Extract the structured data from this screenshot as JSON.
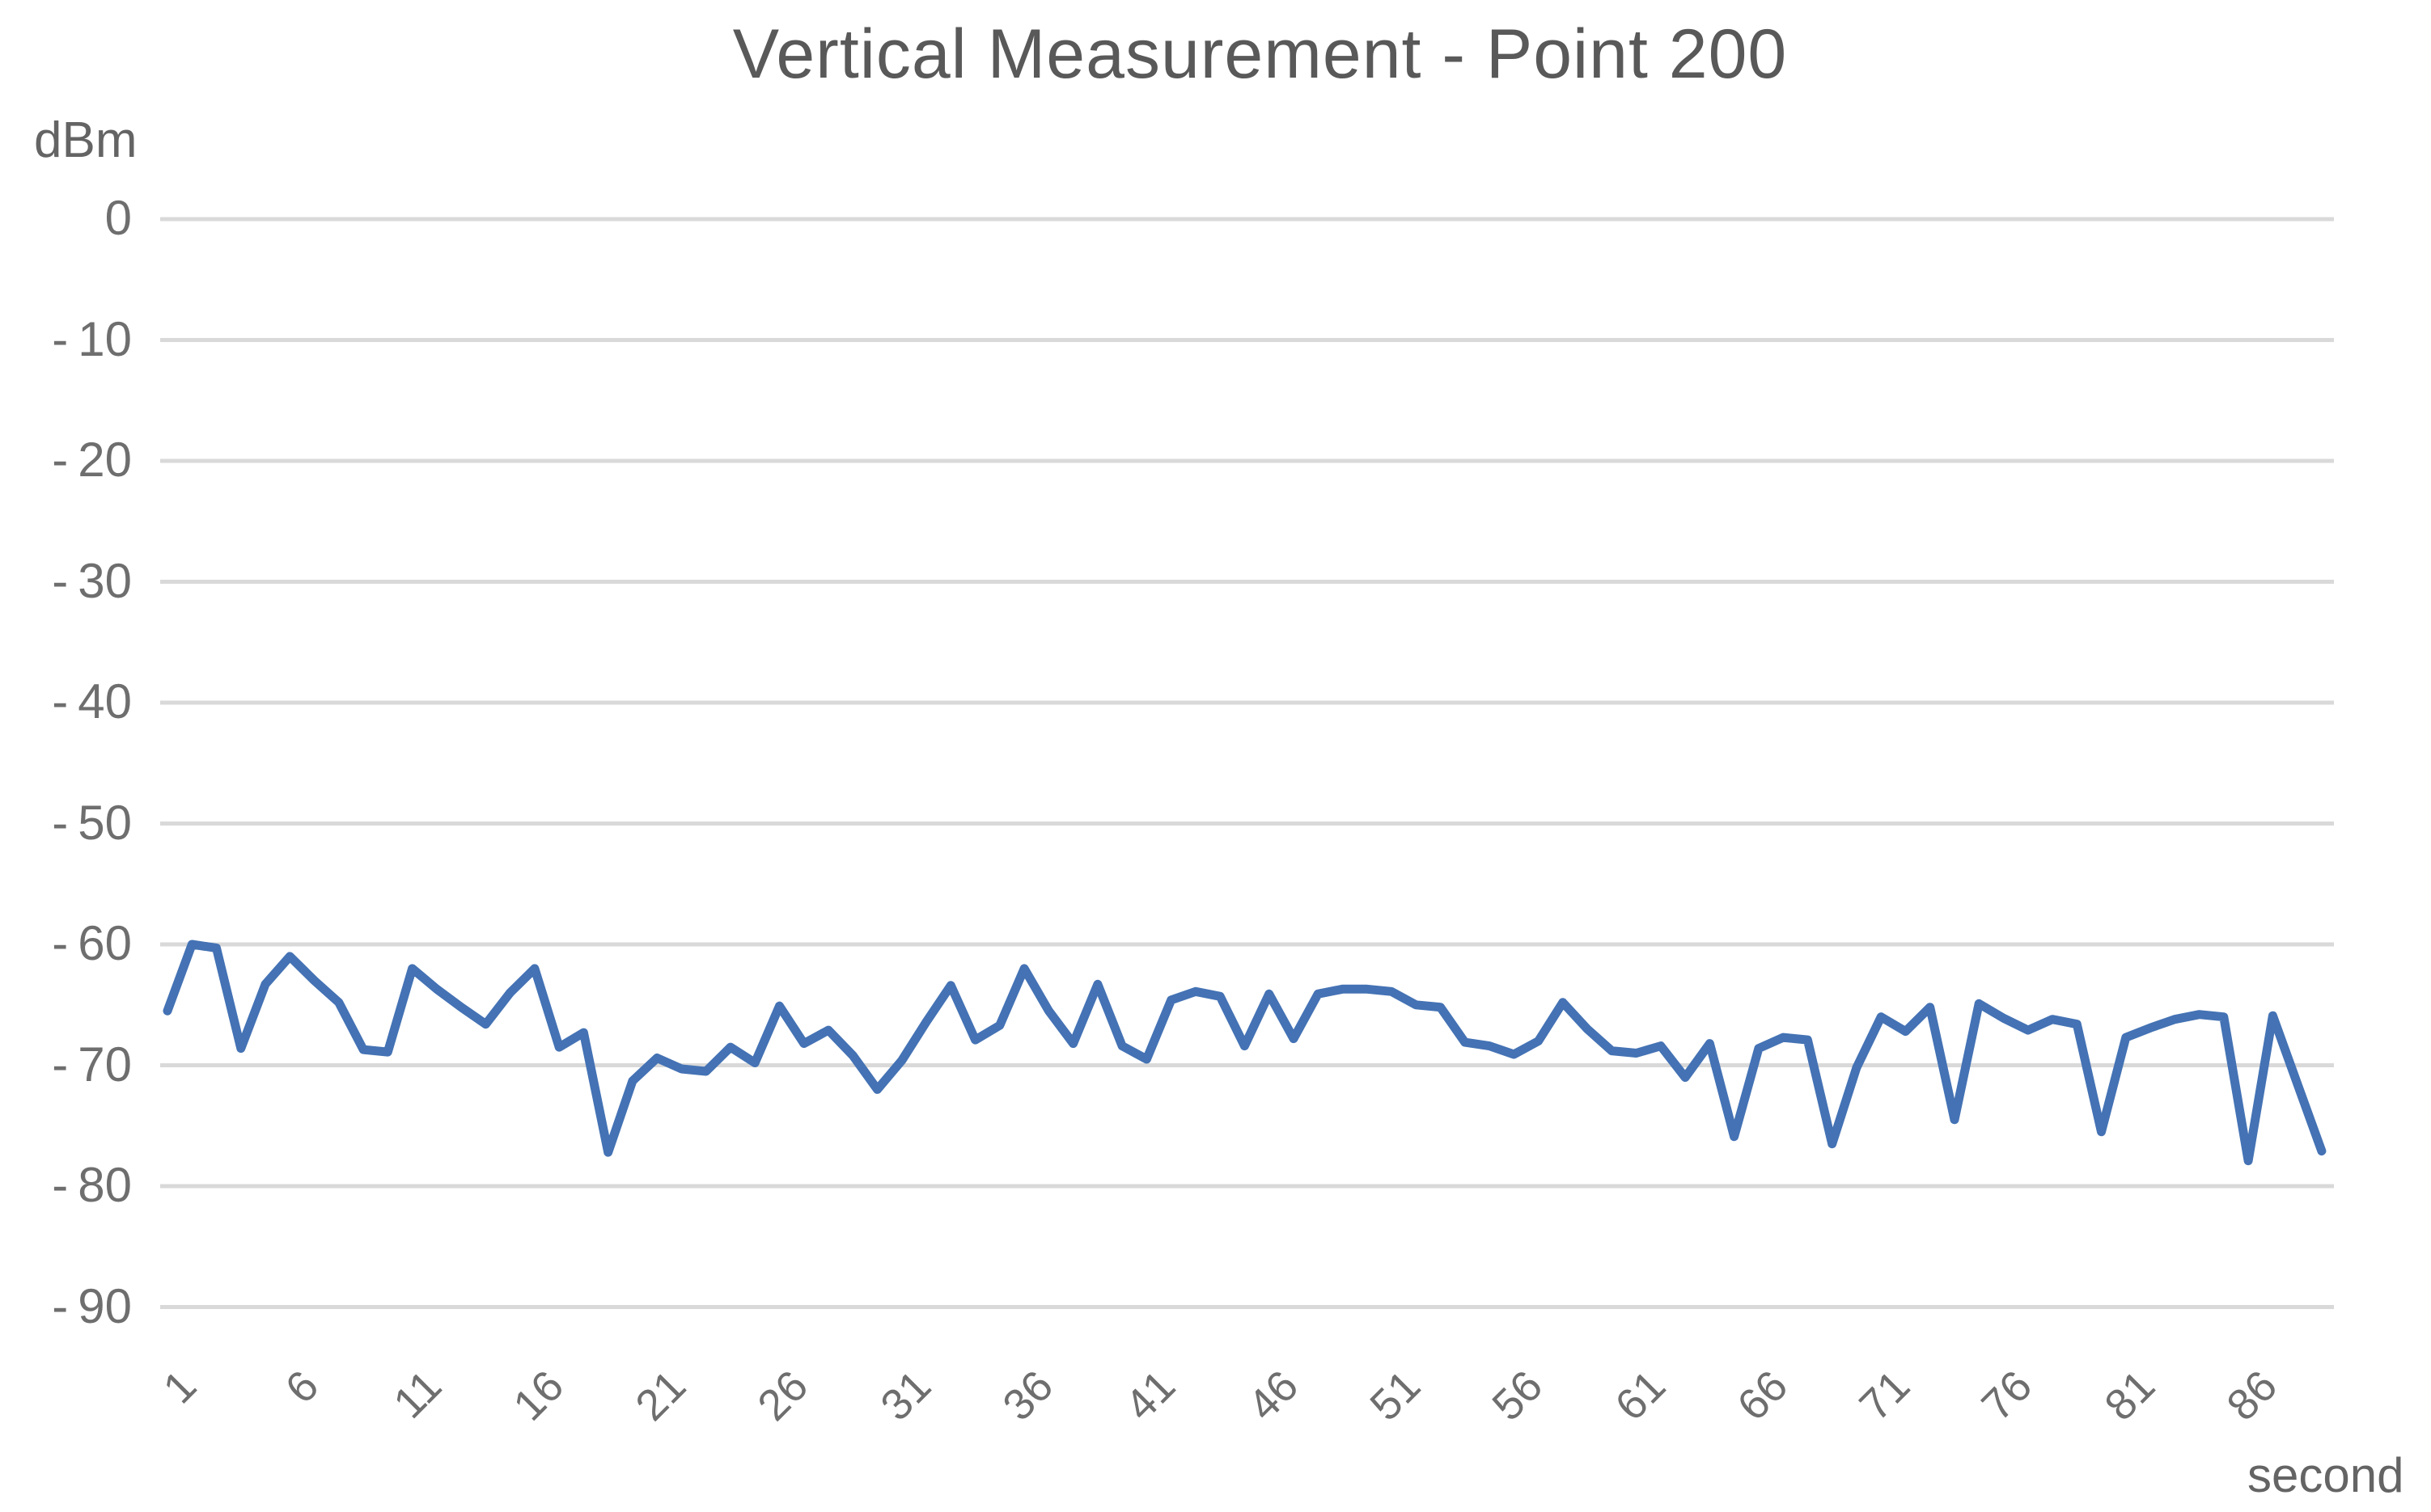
{
  "chart_data": {
    "type": "line",
    "title": "Vertical Measurement - Point 200",
    "ylabel": "dBm",
    "xlabel": "second",
    "x_start": 1,
    "x_step": 1,
    "values": [
      -65.5,
      -60,
      -60.3,
      -68.6,
      -63.3,
      -61,
      -63,
      -64.8,
      -68.7,
      -68.9,
      -62,
      -63.7,
      -65.2,
      -66.6,
      -64,
      -62,
      -68.5,
      -67.3,
      -77.2,
      -71.3,
      -69.4,
      -70.3,
      -70.5,
      -68.5,
      -69.8,
      -65.1,
      -68.2,
      -67.1,
      -69.2,
      -72,
      -69.6,
      -66.4,
      -63.4,
      -67.9,
      -66.7,
      -62,
      -65.5,
      -68.2,
      -63.3,
      -68.4,
      -69.5,
      -64.6,
      -63.9,
      -64.3,
      -68.4,
      -64.1,
      -67.8,
      -64.1,
      -63.7,
      -63.7,
      -63.9,
      -65,
      -65.2,
      -68.1,
      -68.4,
      -69.1,
      -68,
      -64.8,
      -67,
      -68.8,
      -69,
      -68.4,
      -71,
      -68.2,
      -75.9,
      -68.6,
      -67.7,
      -67.9,
      -76.5,
      -70.2,
      -66,
      -67.2,
      -65.2,
      -74.5,
      -64.9,
      -66.1,
      -67.1,
      -66.2,
      -66.6,
      -75.5,
      -67.7,
      -66.9,
      -66.2,
      -65.8,
      -66,
      -77.9,
      -65.9,
      -71.5,
      -77.1
    ],
    "ytick_values": [
      0,
      -10,
      -20,
      -30,
      -40,
      -50,
      -60,
      -70,
      -80,
      -90
    ],
    "ytick_labels": [
      "0",
      "- 10",
      "- 20",
      "- 30",
      "- 40",
      "- 50",
      "- 60",
      "- 70",
      "- 80",
      "- 90"
    ],
    "xtick_values": [
      1,
      6,
      11,
      16,
      21,
      26,
      31,
      36,
      41,
      46,
      51,
      56,
      61,
      66,
      71,
      76,
      81,
      86
    ],
    "xlim": [
      1,
      89
    ],
    "ylim": [
      -95,
      0
    ],
    "grid": "horizontal",
    "legend": "none",
    "line_color": "#4472B4",
    "grid_color": "#D9D9D9",
    "tick_color": "#6E6E6E",
    "title_color": "#595959"
  }
}
